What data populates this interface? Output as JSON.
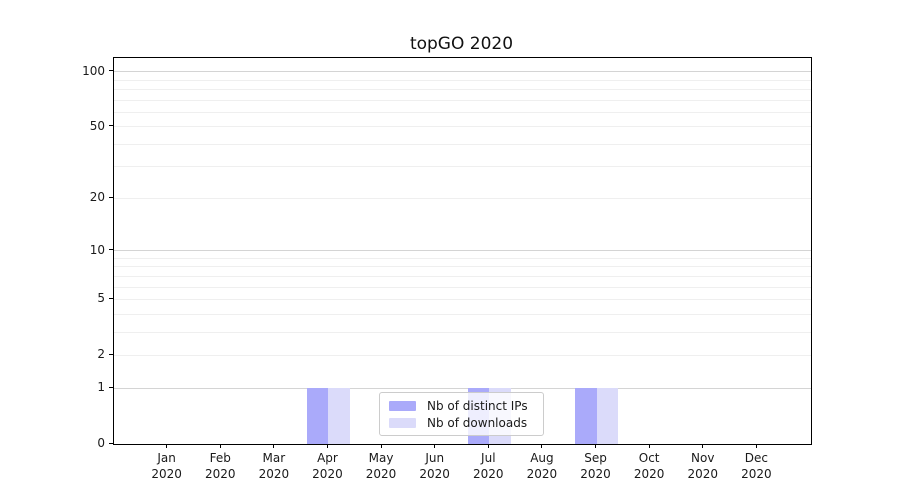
{
  "chart_data": {
    "type": "bar",
    "title": "topGO 2020",
    "categories": [
      "Jan",
      "Feb",
      "Mar",
      "Apr",
      "May",
      "Jun",
      "Jul",
      "Aug",
      "Sep",
      "Oct",
      "Nov",
      "Dec"
    ],
    "x_sub_label": "2020",
    "series": [
      {
        "name": "Nb of distinct IPs",
        "color": "#aaaafa",
        "values": [
          0,
          0,
          0,
          1,
          0,
          0,
          1,
          0,
          1,
          0,
          0,
          0
        ]
      },
      {
        "name": "Nb of downloads",
        "color": "#dbdbfa",
        "values": [
          0,
          0,
          0,
          1,
          0,
          0,
          1,
          0,
          1,
          0,
          0,
          0
        ]
      }
    ],
    "yscale": "log1p",
    "ylim": [
      0,
      118.7
    ],
    "y_ticks_labeled": [
      0,
      1,
      2,
      5,
      10,
      20,
      50,
      100
    ],
    "y_gridlines_major": [
      1,
      10,
      100
    ],
    "y_gridlines_minor": [
      2,
      3,
      4,
      5,
      6,
      7,
      8,
      9,
      20,
      30,
      40,
      50,
      60,
      70,
      80,
      90
    ],
    "grid": true,
    "legend_position": "lower center",
    "colors": {
      "grid_major": "#d4d4d4",
      "grid_minor": "#efefef",
      "axis": "#000000",
      "text": "#1a1a1a",
      "legend_background": "rgba(255,255,255,0.8)",
      "legend_border": "#cccccc"
    }
  }
}
